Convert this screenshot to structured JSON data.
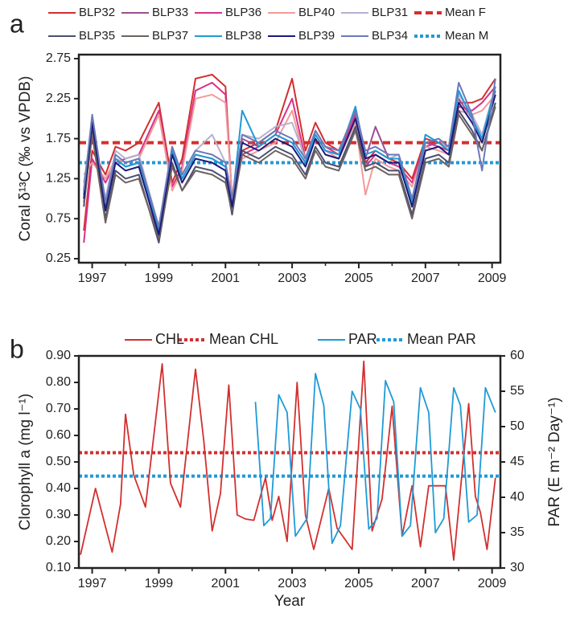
{
  "chart_data": [
    {
      "type": "line",
      "label": "a",
      "ylabel": "Coral δ¹³C (‰ vs VPDB)",
      "xlim": [
        1996.6,
        2009.25
      ],
      "xticks": [
        1997,
        1999,
        2001,
        2003,
        2005,
        2007,
        2009
      ],
      "ylim": [
        0.2,
        2.8
      ],
      "yticks": [
        0.25,
        0.75,
        1.25,
        1.75,
        2.25,
        2.75
      ],
      "x": [
        1996.75,
        1997.0,
        1997.4,
        1997.7,
        1998.0,
        1998.4,
        1999.0,
        1999.4,
        1999.7,
        2000.1,
        2000.6,
        2001.0,
        2001.2,
        2001.5,
        2002.0,
        2002.5,
        2003.0,
        2003.4,
        2003.7,
        2004.0,
        2004.4,
        2004.9,
        2005.2,
        2005.5,
        2005.9,
        2006.2,
        2006.6,
        2007.0,
        2007.4,
        2007.7,
        2008.0,
        2008.4,
        2008.7,
        2009.1
      ],
      "series": [
        {
          "name": "BLP32",
          "color": "#d32f2f",
          "values": [
            0.6,
            1.6,
            1.3,
            1.65,
            1.6,
            1.7,
            2.2,
            1.2,
            1.5,
            2.5,
            2.55,
            2.4,
            1.0,
            1.6,
            1.7,
            1.85,
            2.5,
            1.6,
            1.95,
            1.7,
            1.6,
            2.1,
            1.45,
            1.6,
            1.5,
            1.45,
            1.25,
            1.75,
            1.7,
            1.65,
            2.2,
            2.2,
            2.25,
            2.5
          ]
        },
        {
          "name": "BLP33",
          "color": "#9c4f8f",
          "values": [
            1.1,
            2.0,
            0.9,
            1.5,
            1.4,
            1.45,
            0.5,
            1.6,
            1.25,
            1.55,
            1.5,
            1.4,
            0.85,
            1.75,
            1.65,
            1.8,
            1.7,
            1.45,
            1.8,
            1.6,
            1.55,
            2.05,
            1.5,
            1.9,
            1.5,
            1.5,
            0.9,
            1.65,
            1.7,
            1.6,
            2.25,
            2.0,
            1.75,
            2.35
          ]
        },
        {
          "name": "BLP36",
          "color": "#d6338a",
          "values": [
            0.45,
            1.5,
            1.2,
            1.45,
            1.5,
            1.55,
            2.1,
            1.15,
            1.4,
            2.35,
            2.45,
            2.3,
            1.0,
            1.55,
            1.65,
            1.8,
            2.25,
            1.5,
            1.85,
            1.65,
            1.55,
            2.05,
            1.4,
            1.55,
            1.45,
            1.4,
            1.2,
            1.7,
            1.65,
            1.6,
            2.15,
            2.1,
            2.2,
            2.4
          ]
        },
        {
          "name": "BLP40",
          "color": "#f29a9a",
          "values": [
            1.3,
            1.45,
            1.25,
            1.5,
            1.45,
            1.5,
            2.05,
            1.1,
            1.35,
            2.25,
            2.3,
            2.2,
            1.05,
            1.5,
            1.6,
            1.7,
            2.1,
            1.45,
            1.8,
            1.6,
            1.5,
            1.95,
            1.05,
            1.5,
            1.4,
            1.35,
            1.15,
            1.65,
            1.6,
            1.55,
            2.1,
            2.05,
            2.1,
            2.3
          ]
        },
        {
          "name": "BLP31",
          "color": "#b8b0d0",
          "values": [
            1.2,
            1.9,
            1.0,
            1.6,
            1.5,
            1.55,
            0.65,
            1.65,
            1.3,
            1.6,
            1.8,
            1.45,
            0.95,
            1.8,
            1.75,
            1.9,
            1.95,
            1.5,
            1.85,
            1.65,
            1.6,
            2.1,
            1.55,
            1.6,
            1.5,
            1.55,
            1.0,
            1.7,
            1.75,
            1.6,
            2.3,
            2.05,
            1.8,
            2.4
          ]
        },
        {
          "name": "BLP35",
          "color": "#4a5070",
          "values": [
            0.9,
            1.85,
            0.75,
            1.35,
            1.25,
            1.3,
            0.45,
            1.45,
            1.1,
            1.4,
            1.35,
            1.25,
            0.8,
            1.6,
            1.5,
            1.65,
            1.55,
            1.3,
            1.65,
            1.45,
            1.4,
            1.9,
            1.4,
            1.45,
            1.35,
            1.35,
            0.8,
            1.5,
            1.55,
            1.45,
            2.1,
            1.85,
            1.6,
            2.2
          ]
        },
        {
          "name": "BLP37",
          "color": "#6e6260",
          "values": [
            0.95,
            1.8,
            0.7,
            1.3,
            1.2,
            1.25,
            0.5,
            1.4,
            1.1,
            1.35,
            1.3,
            1.2,
            0.85,
            1.55,
            1.45,
            1.6,
            1.5,
            1.25,
            1.6,
            1.4,
            1.35,
            1.85,
            1.35,
            1.4,
            1.3,
            1.3,
            0.75,
            1.45,
            1.5,
            1.4,
            2.05,
            1.8,
            1.6,
            2.15
          ]
        },
        {
          "name": "BLP38",
          "color": "#1f9ad6",
          "values": [
            1.05,
            2.0,
            0.9,
            1.5,
            1.4,
            1.45,
            0.6,
            1.6,
            1.25,
            1.55,
            1.5,
            1.4,
            0.95,
            2.1,
            1.65,
            1.8,
            1.7,
            1.45,
            1.8,
            1.6,
            1.55,
            2.15,
            1.55,
            1.6,
            1.5,
            1.5,
            0.95,
            1.8,
            1.7,
            1.6,
            2.35,
            2.0,
            1.75,
            2.4
          ]
        },
        {
          "name": "BLP39",
          "color": "#1a1a7a",
          "values": [
            1.0,
            1.95,
            0.85,
            1.45,
            1.35,
            1.4,
            0.55,
            1.55,
            1.2,
            1.5,
            1.45,
            1.35,
            0.9,
            1.7,
            1.6,
            1.75,
            1.65,
            1.4,
            1.75,
            1.55,
            1.5,
            2.0,
            1.5,
            1.55,
            1.45,
            1.45,
            0.9,
            1.6,
            1.65,
            1.55,
            2.2,
            1.95,
            1.7,
            2.3
          ]
        },
        {
          "name": "BLP34",
          "color": "#6a7ab8",
          "values": [
            1.1,
            2.05,
            0.95,
            1.55,
            1.45,
            1.5,
            0.65,
            1.65,
            1.3,
            1.6,
            1.55,
            1.45,
            1.0,
            1.8,
            1.7,
            1.85,
            1.75,
            1.5,
            1.85,
            1.65,
            1.6,
            2.1,
            1.6,
            1.65,
            1.55,
            1.55,
            1.0,
            1.7,
            1.75,
            1.65,
            2.45,
            2.05,
            1.35,
            2.5
          ]
        }
      ],
      "reference_lines": [
        {
          "name": "Mean F",
          "value": 1.7,
          "color": "#d32f2f",
          "style": "dashed"
        },
        {
          "name": "Mean M",
          "value": 1.45,
          "color": "#1f9ad6",
          "style": "dotted"
        }
      ]
    },
    {
      "type": "line",
      "label": "b",
      "xlabel": "Year",
      "ylabel": "Clorophyll a (mg l⁻¹)",
      "y2label": "PAR (E m⁻² Day⁻¹)",
      "xlim": [
        1996.6,
        2009.25
      ],
      "xticks": [
        1997,
        1999,
        2001,
        2003,
        2005,
        2007,
        2009
      ],
      "ylim": [
        0.1,
        0.9
      ],
      "yticks": [
        {
          "value": 0.1,
          "label": "0.10"
        },
        {
          "value": 0.2,
          "label": "0.20"
        },
        {
          "value": 0.3,
          "label": "0.30"
        },
        {
          "value": 0.4,
          "label": "0.40"
        },
        {
          "value": 0.5,
          "label": "0.50"
        },
        {
          "value": 0.6,
          "label": "0.60"
        },
        {
          "value": 0.7,
          "label": "0.70"
        },
        {
          "value": 0.8,
          "label": "0.80"
        },
        {
          "value": 0.9,
          "label": "0.90"
        }
      ],
      "y2lim": [
        30,
        60
      ],
      "y2ticks": [
        30,
        35,
        40,
        45,
        50,
        55,
        60
      ],
      "series": [
        {
          "name": "CHL",
          "color": "#d32f2f",
          "x": [
            1996.65,
            1997.1,
            1997.6,
            1997.85,
            1998.0,
            1998.25,
            1998.6,
            1999.1,
            1999.35,
            1999.65,
            2000.1,
            2000.35,
            2000.6,
            2000.85,
            2001.1,
            2001.35,
            2001.6,
            2001.85,
            2002.2,
            2002.4,
            2002.6,
            2002.85,
            2003.15,
            2003.4,
            2003.65,
            2004.1,
            2004.35,
            2004.8,
            2005.15,
            2005.4,
            2005.7,
            2006.0,
            2006.3,
            2006.6,
            2006.85,
            2007.1,
            2007.4,
            2007.6,
            2007.85,
            2008.3,
            2008.5,
            2008.65,
            2008.85,
            2009.1
          ],
          "values": [
            0.15,
            0.4,
            0.16,
            0.34,
            0.68,
            0.45,
            0.33,
            0.87,
            0.42,
            0.33,
            0.85,
            0.58,
            0.24,
            0.38,
            0.79,
            0.3,
            0.285,
            0.28,
            0.44,
            0.28,
            0.37,
            0.2,
            0.8,
            0.3,
            0.17,
            0.4,
            0.25,
            0.17,
            0.88,
            0.24,
            0.36,
            0.71,
            0.22,
            0.41,
            0.18,
            0.41,
            0.41,
            0.41,
            0.13,
            0.72,
            0.37,
            0.31,
            0.17,
            0.44
          ]
        },
        {
          "name": "PAR",
          "color": "#1f9ad6",
          "axis": "y2",
          "x": [
            2001.9,
            2002.15,
            2002.35,
            2002.6,
            2002.85,
            2003.1,
            2003.45,
            2003.7,
            2003.95,
            2004.2,
            2004.45,
            2004.8,
            2005.05,
            2005.3,
            2005.55,
            2005.8,
            2006.05,
            2006.3,
            2006.55,
            2006.85,
            2007.1,
            2007.3,
            2007.55,
            2007.85,
            2008.05,
            2008.3,
            2008.55,
            2008.8,
            2009.1
          ],
          "values": [
            53.5,
            36,
            37,
            54.5,
            52,
            34.5,
            37,
            57.5,
            53,
            33.5,
            36,
            55,
            52.5,
            35.5,
            37,
            56.5,
            53.5,
            34.5,
            36,
            55.5,
            52,
            35,
            37,
            55.5,
            53,
            36.5,
            37.5,
            55.5,
            52
          ]
        }
      ],
      "reference_lines": [
        {
          "name": "Mean CHL",
          "value": 0.535,
          "color": "#d32f2f",
          "style": "dotted"
        },
        {
          "name": "Mean PAR",
          "value": 43,
          "color": "#1f9ad6",
          "style": "dotted",
          "axis": "y2"
        }
      ]
    }
  ]
}
